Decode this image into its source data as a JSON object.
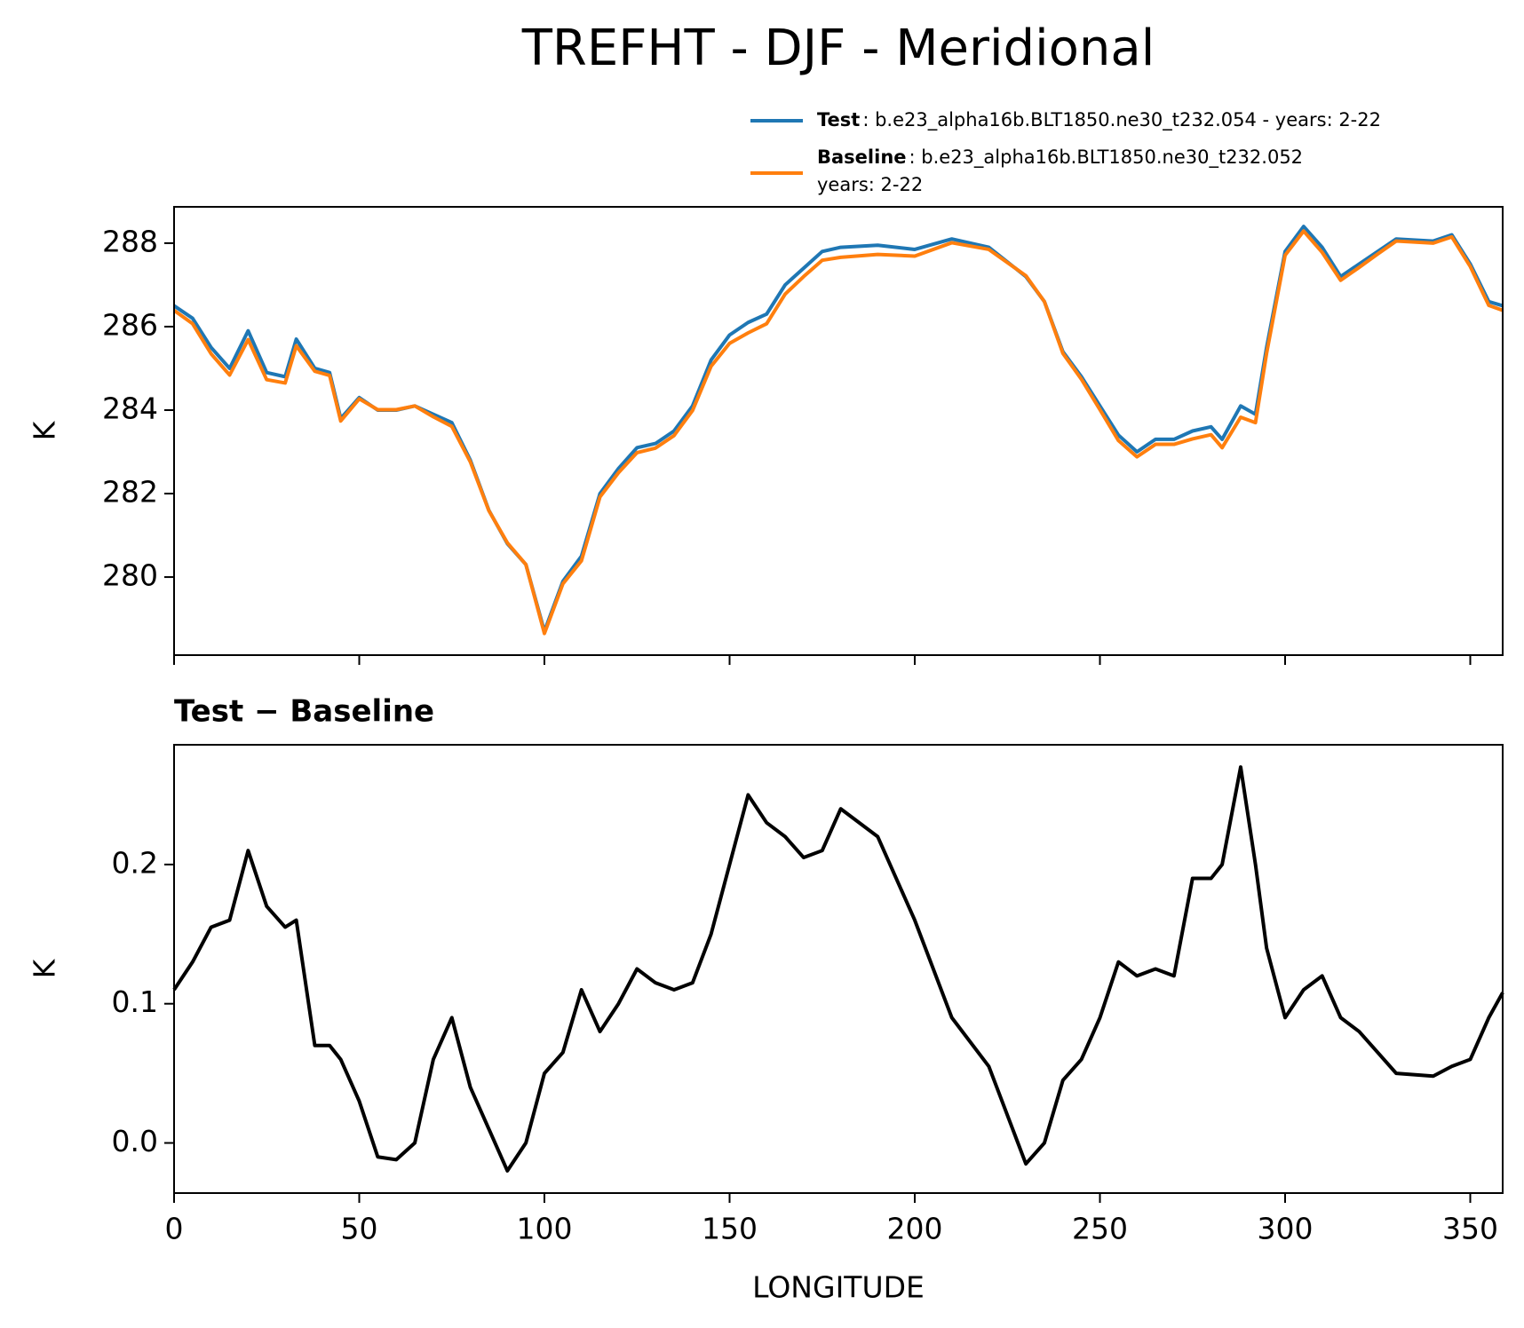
{
  "chart_data": [
    {
      "type": "line",
      "title": "TREFHT - DJF - Meridional",
      "ylabel": "K",
      "x": [
        0,
        5,
        10,
        15,
        20,
        25,
        30,
        33,
        38,
        42,
        45,
        50,
        55,
        60,
        65,
        70,
        75,
        80,
        85,
        90,
        95,
        100,
        105,
        110,
        115,
        120,
        125,
        130,
        135,
        140,
        145,
        150,
        155,
        160,
        165,
        170,
        175,
        180,
        190,
        200,
        210,
        220,
        230,
        235,
        240,
        245,
        250,
        255,
        260,
        265,
        270,
        275,
        280,
        283,
        288,
        292,
        295,
        300,
        305,
        310,
        315,
        320,
        325,
        330,
        340,
        345,
        350,
        355,
        358.75
      ],
      "series": [
        {
          "name": "Test",
          "label_lines": [
            ": b.e23_alpha16b.BLT1850.ne30_t232.054 - years: 2-22"
          ],
          "color": "#1f77b4",
          "values": [
            286.5,
            286.2,
            285.5,
            285.0,
            285.9,
            284.9,
            284.8,
            285.7,
            285.0,
            284.9,
            283.8,
            284.3,
            284.0,
            284.0,
            284.1,
            283.9,
            283.7,
            282.8,
            281.6,
            280.8,
            280.3,
            278.7,
            279.9,
            280.5,
            282.0,
            282.6,
            283.1,
            283.2,
            283.5,
            284.1,
            285.2,
            285.8,
            286.1,
            286.3,
            287.0,
            287.4,
            287.8,
            287.9,
            287.95,
            287.85,
            288.1,
            287.9,
            287.2,
            286.6,
            285.4,
            284.8,
            284.1,
            283.4,
            283.0,
            283.3,
            283.3,
            283.5,
            283.6,
            283.3,
            284.1,
            283.9,
            285.5,
            287.8,
            288.4,
            287.9,
            287.2,
            287.5,
            287.8,
            288.1,
            288.05,
            288.2,
            287.5,
            286.6,
            286.5
          ]
        },
        {
          "name": "Baseline",
          "label_lines": [
            ": b.e23_alpha16b.BLT1850.ne30_t232.052",
            "years: 2-22"
          ],
          "color": "#ff7f0e",
          "values": [
            286.39,
            286.07,
            285.35,
            284.84,
            285.69,
            284.73,
            284.65,
            285.54,
            284.93,
            284.83,
            283.74,
            284.27,
            284.01,
            284.01,
            284.1,
            283.84,
            283.61,
            282.76,
            281.59,
            280.82,
            280.3,
            278.65,
            279.84,
            280.39,
            281.92,
            282.5,
            282.98,
            283.09,
            283.39,
            283.99,
            285.05,
            285.6,
            285.85,
            286.07,
            286.78,
            287.2,
            287.59,
            287.66,
            287.73,
            287.69,
            288.01,
            287.85,
            287.22,
            286.6,
            285.36,
            284.74,
            284.01,
            283.27,
            282.88,
            283.18,
            283.18,
            283.31,
            283.41,
            283.1,
            283.83,
            283.7,
            285.36,
            287.71,
            288.29,
            287.78,
            287.11,
            287.42,
            287.74,
            288.05,
            288.0,
            288.15,
            287.44,
            286.51,
            286.39
          ]
        }
      ],
      "xlim": [
        0,
        358.75
      ],
      "xticks": [
        0,
        50,
        100,
        150,
        200,
        250,
        300,
        350
      ],
      "ylim": [
        278.13,
        288.87
      ],
      "yticks": [
        280,
        282,
        284,
        286,
        288
      ]
    },
    {
      "type": "line",
      "title": "Test − Baseline",
      "ylabel": "K",
      "xlabel": "LONGITUDE",
      "x": [
        0,
        5,
        10,
        15,
        20,
        25,
        30,
        33,
        38,
        42,
        45,
        50,
        55,
        60,
        65,
        70,
        75,
        80,
        85,
        90,
        95,
        100,
        105,
        110,
        115,
        120,
        125,
        130,
        135,
        140,
        145,
        150,
        155,
        160,
        165,
        170,
        175,
        180,
        190,
        200,
        210,
        220,
        230,
        235,
        240,
        245,
        250,
        255,
        260,
        265,
        270,
        275,
        280,
        283,
        288,
        292,
        295,
        300,
        305,
        310,
        315,
        320,
        325,
        330,
        340,
        345,
        350,
        355,
        358.75
      ],
      "series": [
        {
          "name": null,
          "color": "#000000",
          "values": [
            0.11,
            0.13,
            0.155,
            0.16,
            0.21,
            0.17,
            0.155,
            0.16,
            0.07,
            0.07,
            0.06,
            0.03,
            -0.01,
            -0.012,
            0.0,
            0.06,
            0.09,
            0.04,
            0.01,
            -0.02,
            0.0,
            0.05,
            0.065,
            0.11,
            0.08,
            0.1,
            0.125,
            0.115,
            0.11,
            0.115,
            0.15,
            0.2,
            0.25,
            0.23,
            0.22,
            0.205,
            0.21,
            0.24,
            0.22,
            0.16,
            0.09,
            0.055,
            -0.015,
            0.0,
            0.045,
            0.06,
            0.09,
            0.13,
            0.12,
            0.125,
            0.12,
            0.19,
            0.19,
            0.2,
            0.27,
            0.2,
            0.14,
            0.09,
            0.11,
            0.12,
            0.09,
            0.08,
            0.065,
            0.05,
            0.048,
            0.055,
            0.06,
            0.09,
            0.108
          ]
        }
      ],
      "xlim": [
        0,
        358.75
      ],
      "xticks": [
        0,
        50,
        100,
        150,
        200,
        250,
        300,
        350
      ],
      "ylim": [
        -0.036,
        0.286
      ],
      "yticks": [
        {
          "value": 0,
          "label": "0.0"
        },
        0.1,
        0.2
      ]
    }
  ]
}
